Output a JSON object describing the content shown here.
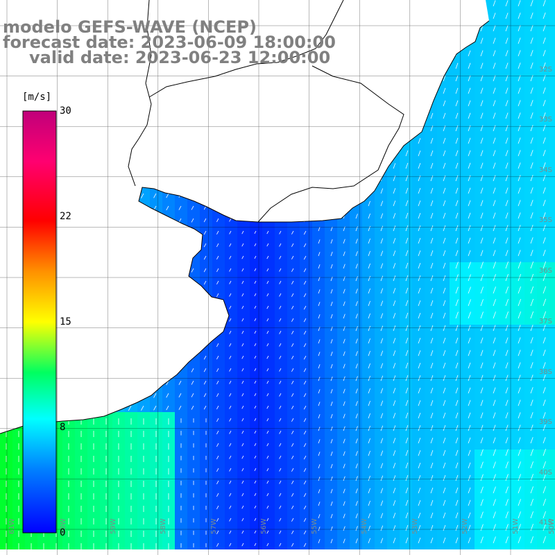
{
  "title": {
    "line1": "modelo GEFS-WAVE (NCEP)",
    "line2": "forecast date: 2023-06-09 18:00:00",
    "line3": "valid date: 2023-06-23 12:00:00"
  },
  "colorbar": {
    "unit": "[m/s]",
    "ticks": [
      "30",
      "22",
      "15",
      "8",
      "0"
    ],
    "min": 0,
    "max": 30,
    "colors": [
      "#0000ff",
      "#00a0ff",
      "#00ffff",
      "#00ff40",
      "#ffff00",
      "#ff8000",
      "#ff0000",
      "#ff0080",
      "#c0007a"
    ]
  },
  "map": {
    "latitude_labels": [
      "32S",
      "33S",
      "34S",
      "35S",
      "36S",
      "37S",
      "38S",
      "39S",
      "40S",
      "41S"
    ],
    "longitude_labels": [
      "61W",
      "60W",
      "59W",
      "58W",
      "57W",
      "56W",
      "55W",
      "54W",
      "53W",
      "52W",
      "51W",
      "50W"
    ],
    "land_color": "#ffffff",
    "grid_color": "#000000",
    "arrow_color": "#ffffff"
  }
}
